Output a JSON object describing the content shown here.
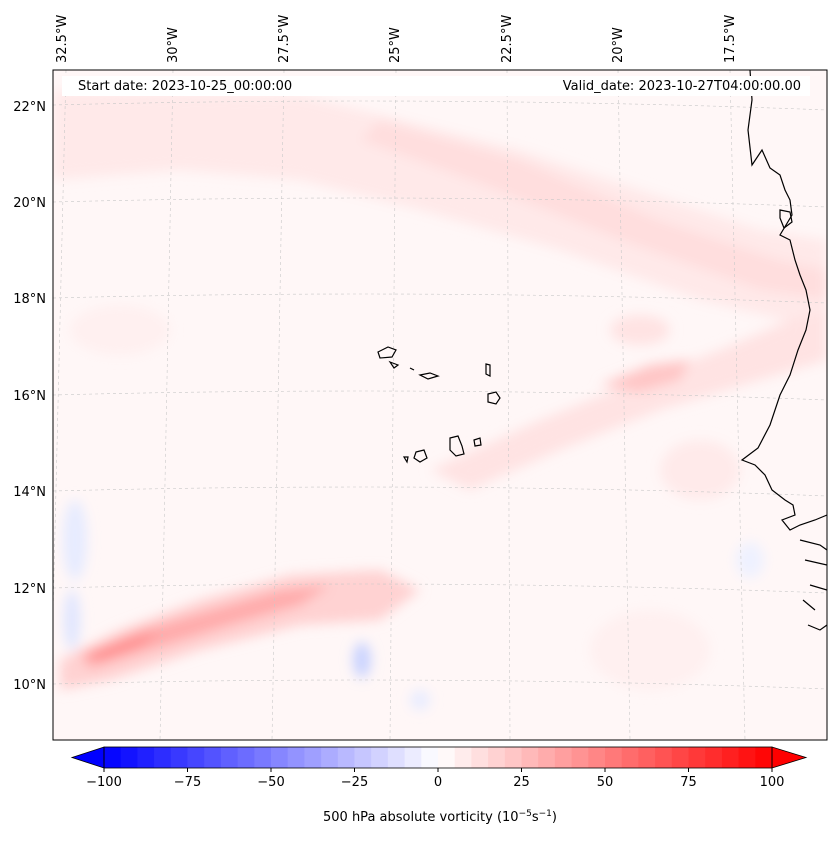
{
  "map": {
    "start_label": "Start date: 2023-10-25_00:00:00",
    "valid_label": "Valid_date: 2023-10-27T04:00:00.00",
    "lon_labels": [
      "32.5°W",
      "30°W",
      "27.5°W",
      "25°W",
      "22.5°W",
      "20°W",
      "17.5°W"
    ],
    "lat_labels": [
      "22°N",
      "20°N",
      "18°N",
      "16°N",
      "14°N",
      "12°N",
      "10°N"
    ],
    "colorbar": {
      "label": "500 hPa absolute vorticity (10",
      "label_sup1": "−5",
      "label_mid": "s",
      "label_sup2": "−1",
      "label_end": ")",
      "ticks": [
        "−100",
        "−75",
        "−50",
        "−25",
        "0",
        "25",
        "50",
        "75",
        "100"
      ],
      "tick_values": [
        -100,
        -75,
        -50,
        -25,
        0,
        25,
        50,
        75,
        100
      ],
      "min": -100,
      "max": 100,
      "step": 5,
      "colormap": "bwr"
    },
    "colors": {
      "negative": "#0000ff",
      "neutral": "#ffffff",
      "positive": "#ff0000",
      "coast": "#000000",
      "grid": "#c8c8c8"
    }
  }
}
